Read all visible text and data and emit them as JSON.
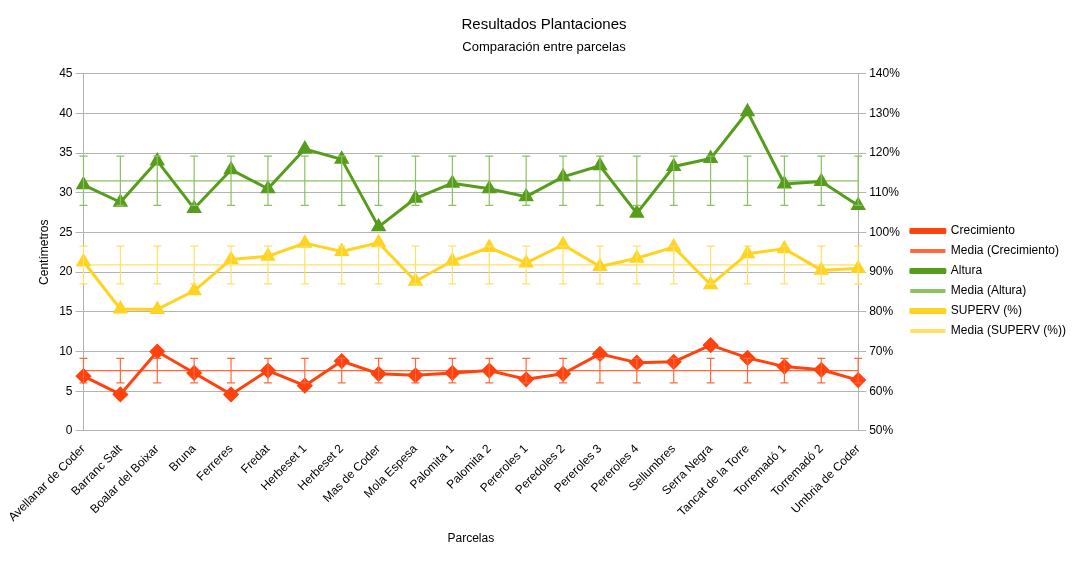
{
  "chart_data": {
    "type": "line",
    "title": "Resultados Plantaciones",
    "subtitle": "Comparación entre parcelas",
    "xlabel": "Parcelas",
    "ylabel": "Centímetros",
    "categories": [
      "Avellanar de Coder",
      "Barranc Salt",
      "Boalar del Boixar",
      "Bruna",
      "Ferreres",
      "Fredat",
      "Herbeset 1",
      "Herbeset 2",
      "Mas de Coder",
      "Mola Espesa",
      "Palomita 1",
      "Palomita 2",
      "Pereroles 1",
      "Peredoles 2",
      "Pereroles 3",
      "Pereroles 4",
      "Sellumbres",
      "Serra Negra",
      "Tancat de la Torre",
      "Torremadó 1",
      "Torremadó 2",
      "Umbria de Coder"
    ],
    "series": [
      {
        "name": "Crecimiento",
        "color": "#ff420e",
        "marker": "diamond",
        "values": [
          6.9,
          4.6,
          10.0,
          7.3,
          4.6,
          7.6,
          5.7,
          8.8,
          7.2,
          7.0,
          7.3,
          7.6,
          6.5,
          7.2,
          9.7,
          8.6,
          8.7,
          10.8,
          9.2,
          8.1,
          7.7,
          6.4
        ]
      },
      {
        "name": "Media (Crecimiento)",
        "color": "#ff6a3d",
        "marker": "none",
        "values": [
          7.6,
          7.6,
          7.6,
          7.6,
          7.6,
          7.6,
          7.6,
          7.6,
          7.6,
          7.6,
          7.6,
          7.6,
          7.6,
          7.6,
          7.6,
          7.6,
          7.6,
          7.6,
          7.6,
          7.6,
          7.6,
          7.6
        ],
        "errors": [
          1.55,
          1.55,
          1.55,
          1.55,
          1.55,
          1.55,
          1.55,
          1.55,
          1.55,
          1.55,
          1.55,
          1.55,
          1.55,
          1.55,
          1.55,
          1.55,
          1.55,
          1.55,
          1.55,
          1.55,
          1.55,
          1.55
        ]
      },
      {
        "name": "Altura",
        "color": "#579d1c",
        "marker": "triangle",
        "values": [
          31.0,
          28.8,
          34.0,
          28.0,
          32.9,
          30.5,
          35.5,
          34.2,
          25.7,
          29.3,
          31.2,
          30.5,
          29.5,
          32.0,
          33.4,
          27.4,
          33.3,
          34.3,
          40.2,
          31.1,
          31.4,
          28.4
        ]
      },
      {
        "name": "Media (Altura)",
        "color": "#8cc063",
        "marker": "none",
        "values": [
          31.5,
          31.5,
          31.5,
          31.5,
          31.5,
          31.5,
          31.5,
          31.5,
          31.5,
          31.5,
          31.5,
          31.5,
          31.5,
          31.5,
          31.5,
          31.5,
          31.5,
          31.5,
          31.5,
          31.5,
          31.5,
          31.5
        ],
        "errors": [
          3.1,
          3.1,
          3.1,
          3.1,
          3.1,
          3.1,
          3.1,
          3.1,
          3.1,
          3.1,
          3.1,
          3.1,
          3.1,
          3.1,
          3.1,
          3.1,
          3.1,
          3.1,
          3.1,
          3.1,
          3.1,
          3.1
        ]
      },
      {
        "name": "SUPERV (%)",
        "color": "#ffd320",
        "marker": "triangle",
        "axis": "y2",
        "values": [
          92.6,
          80.7,
          80.6,
          85.3,
          93.2,
          94.0,
          97.3,
          95.2,
          97.4,
          87.7,
          92.8,
          96.2,
          92.3,
          96.9,
          91.4,
          93.5,
          96.3,
          86.8,
          94.6,
          95.9,
          90.5,
          90.9
        ]
      },
      {
        "name": "Media (SUPERV (%))",
        "color": "#ffe066",
        "marker": "none",
        "axis": "y2",
        "values": [
          91.8,
          91.8,
          91.8,
          91.8,
          91.8,
          91.8,
          91.8,
          91.8,
          91.8,
          91.8,
          91.8,
          91.8,
          91.8,
          91.8,
          91.8,
          91.8,
          91.8,
          91.8,
          91.8,
          91.8,
          91.8,
          91.8
        ],
        "errors": [
          4.75,
          4.75,
          4.75,
          4.75,
          4.75,
          4.75,
          4.75,
          4.75,
          4.75,
          4.75,
          4.75,
          4.75,
          4.75,
          4.75,
          4.75,
          4.75,
          4.75,
          4.75,
          4.75,
          4.75,
          4.75,
          4.75
        ]
      }
    ],
    "ylim": [
      0,
      45
    ],
    "yticks": [
      0,
      5,
      10,
      15,
      20,
      25,
      30,
      35,
      40,
      45
    ],
    "y2lim": [
      50,
      140
    ],
    "y2ticks": [
      {
        "value": 50,
        "label": "50%"
      },
      {
        "value": 60,
        "label": "60%"
      },
      {
        "value": 70,
        "label": "70%"
      },
      {
        "value": 80,
        "label": "80%"
      },
      {
        "value": 90,
        "label": "90%"
      },
      {
        "value": 100,
        "label": "100%"
      },
      {
        "value": 110,
        "label": "110%"
      },
      {
        "value": 120,
        "label": "120%"
      },
      {
        "value": 130,
        "label": "130%"
      },
      {
        "value": 140,
        "label": "140%"
      }
    ],
    "grid": "y",
    "legend": "right"
  }
}
